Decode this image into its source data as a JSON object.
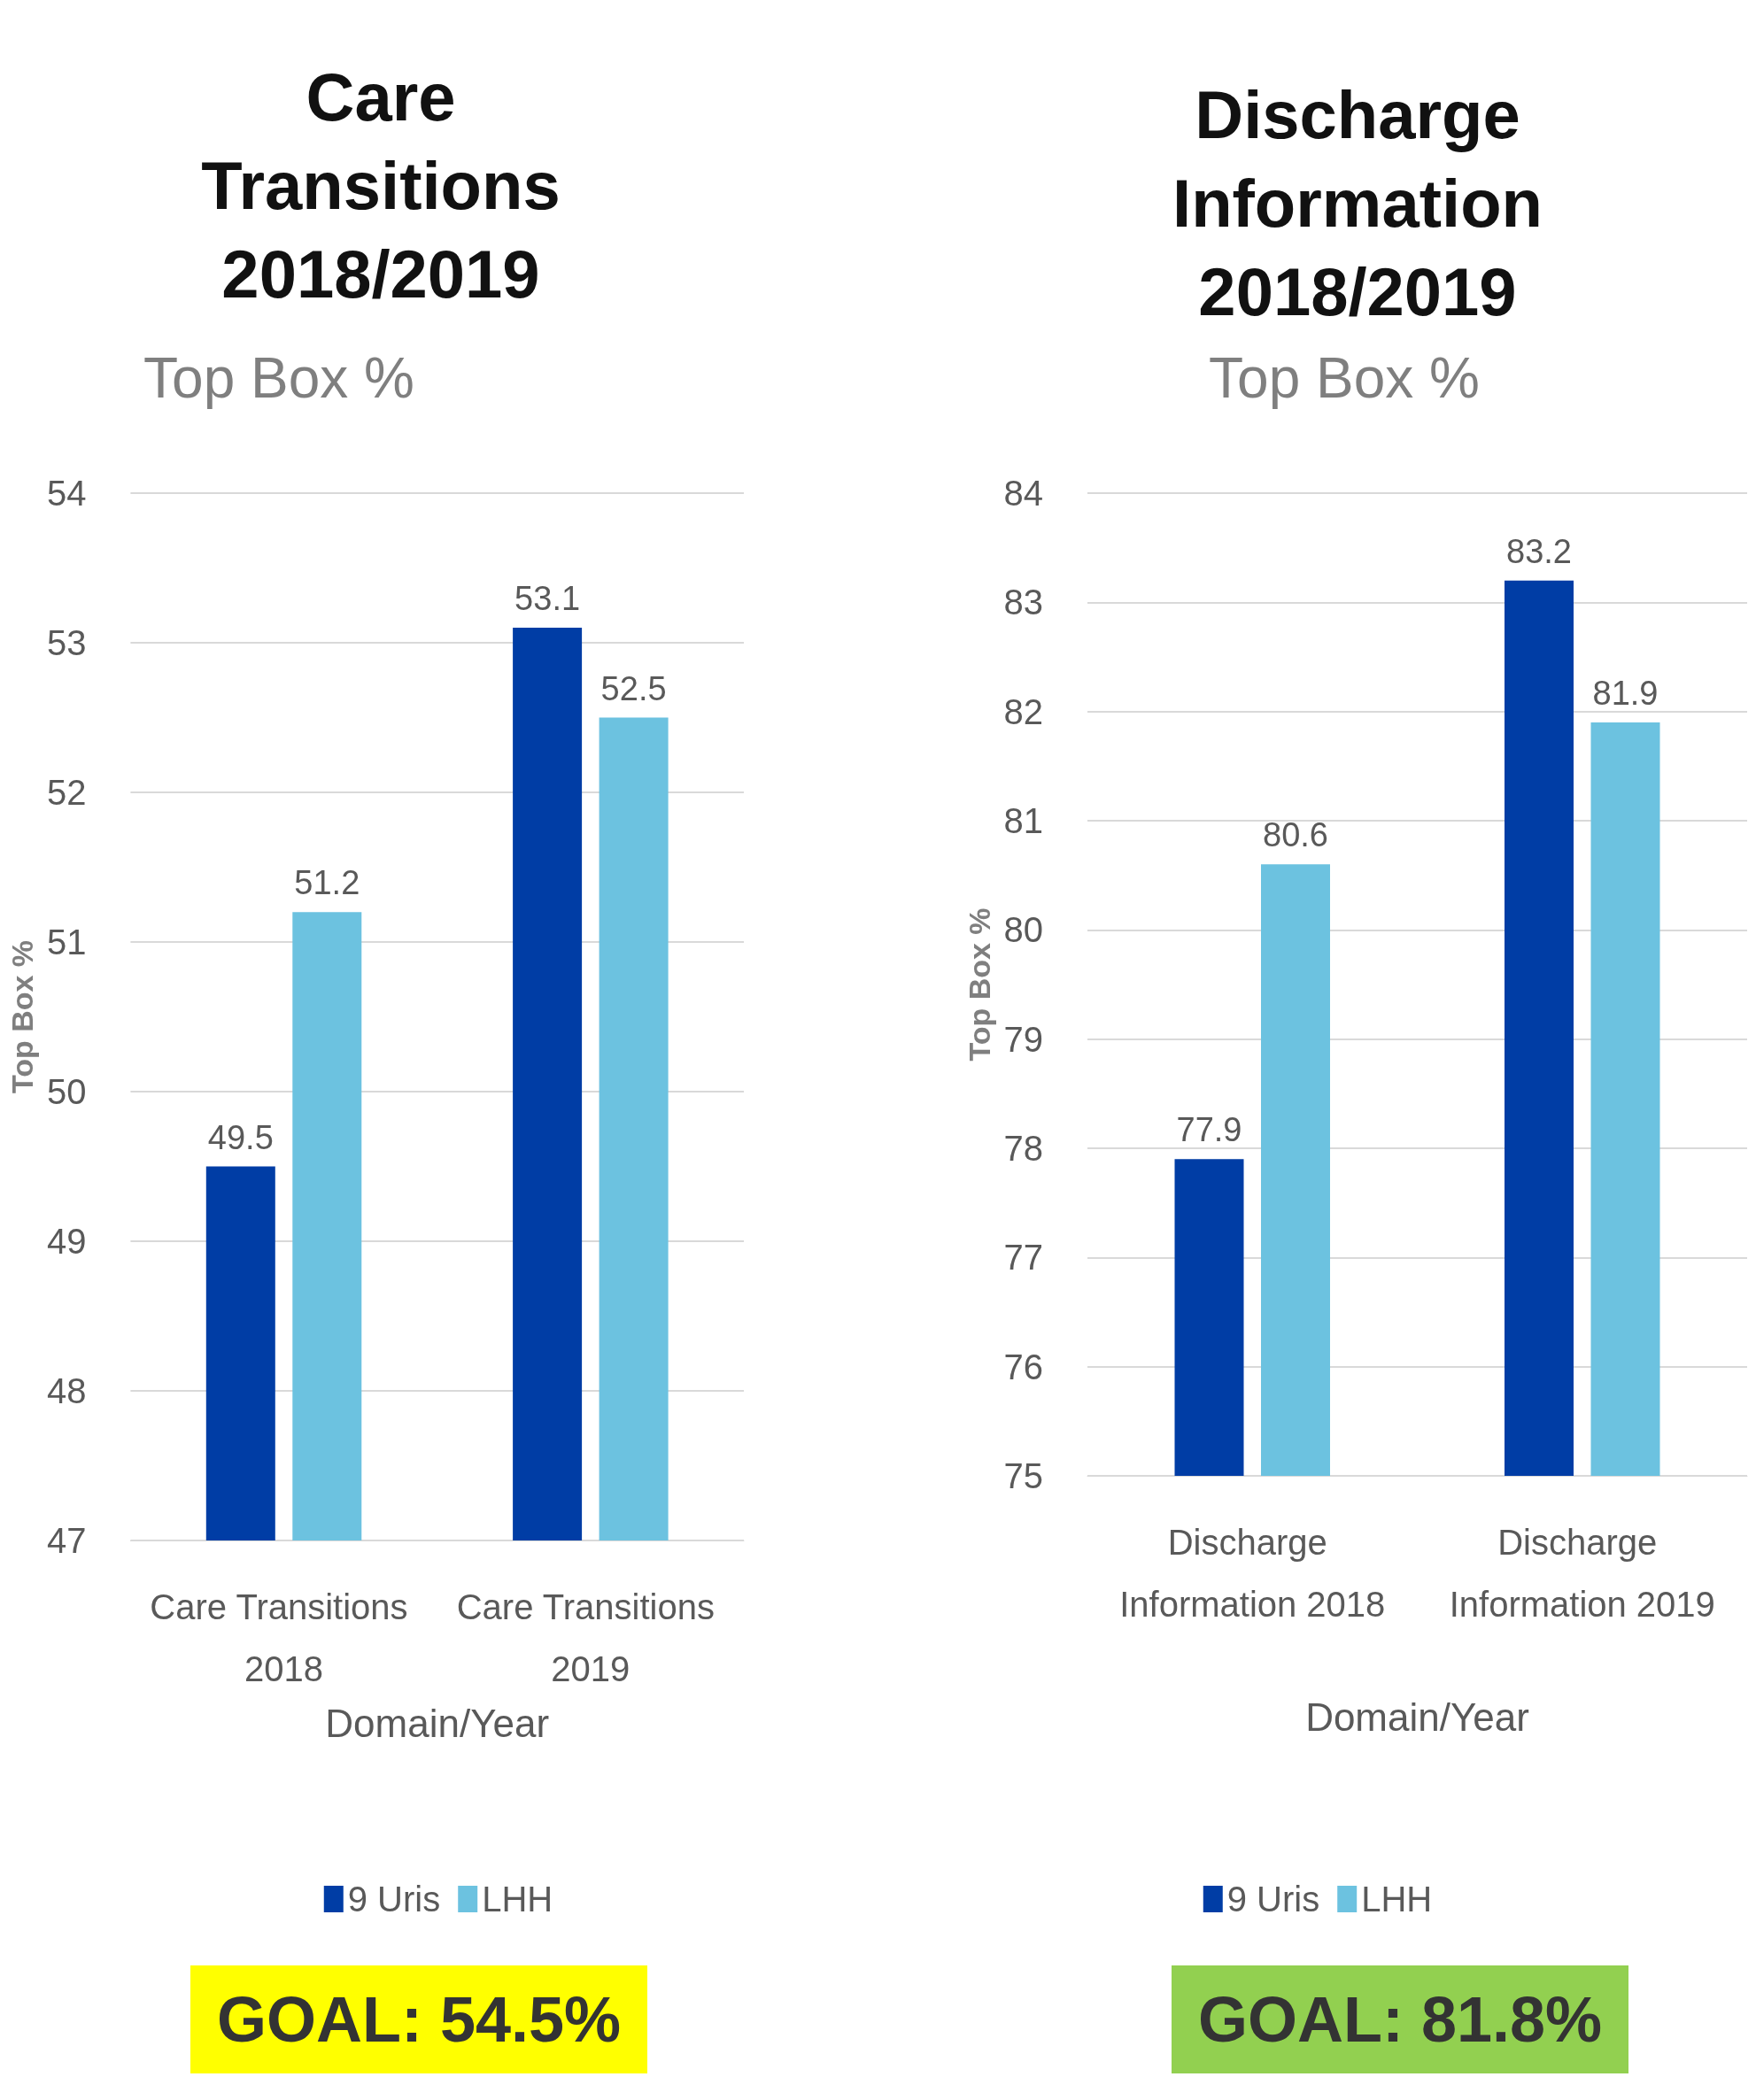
{
  "chart_data": [
    {
      "type": "bar",
      "title": "Care Transitions 2018/2019",
      "subtitle": "Top Box %",
      "xlabel": "Domain/Year",
      "ylabel": "Top Box %",
      "categories": [
        "Care Transitions 2018",
        "Care Transitions 2019"
      ],
      "series": [
        {
          "name": "9 Uris",
          "color": "#003da5",
          "values": [
            49.5,
            53.1
          ]
        },
        {
          "name": "LHH",
          "color": "#6cc2e0",
          "values": [
            51.2,
            52.5
          ]
        }
      ],
      "ylim": [
        47,
        54
      ],
      "yticks": [
        47,
        48,
        49,
        50,
        51,
        52,
        53,
        54
      ],
      "grid": "y",
      "legend": "bottom",
      "data_labels": true,
      "annotations": [
        "GOAL: 54.5%"
      ]
    },
    {
      "type": "bar",
      "title": "Discharge Information 2018/2019",
      "subtitle": "Top Box %",
      "xlabel": "Domain/Year",
      "ylabel": "Top Box %",
      "categories": [
        "Discharge Information 2018",
        "Discharge Information 2019"
      ],
      "series": [
        {
          "name": "9 Uris",
          "color": "#003da5",
          "values": [
            77.9,
            83.2
          ]
        },
        {
          "name": "LHH",
          "color": "#6cc2e0",
          "values": [
            80.6,
            81.9
          ]
        }
      ],
      "ylim": [
        75,
        84
      ],
      "yticks": [
        75,
        76,
        77,
        78,
        79,
        80,
        81,
        82,
        83,
        84
      ],
      "grid": "y",
      "legend": "bottom",
      "data_labels": true,
      "annotations": [
        "GOAL: 81.8%"
      ]
    }
  ]
}
